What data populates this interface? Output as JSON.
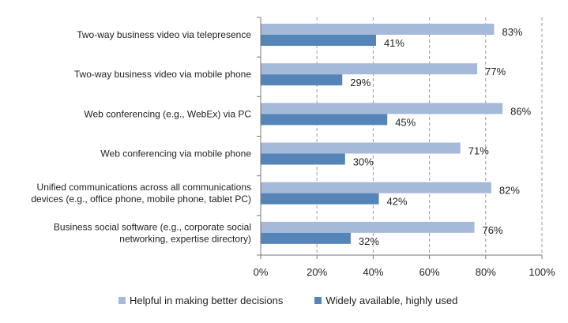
{
  "chart_data": {
    "type": "bar",
    "orientation": "horizontal",
    "categories": [
      [
        "Two-way business video via telepresence"
      ],
      [
        "Two-way business video via mobile phone"
      ],
      [
        "Web conferencing (e.g., WebEx) via PC"
      ],
      [
        "Web conferencing via mobile phone"
      ],
      [
        "Unified communications across all communications",
        "devices (e.g., office phone, mobile phone, tablet PC)"
      ],
      [
        "Business social software (e.g., corporate social",
        "networking, expertise directory)"
      ]
    ],
    "series": [
      {
        "name": "Helpful in making better decisions",
        "color": "#a5b9d9",
        "values": [
          83,
          77,
          86,
          71,
          82,
          76
        ],
        "labels": [
          "83%",
          "77%",
          "86%",
          "71%",
          "82%",
          "76%"
        ]
      },
      {
        "name": "Widely available, highly used",
        "color": "#5584b8",
        "values": [
          41,
          29,
          45,
          30,
          42,
          32
        ],
        "labels": [
          "41%",
          "29%",
          "45%",
          "30%",
          "42%",
          "32%"
        ]
      }
    ],
    "x_ticks": [
      "0%",
      "20%",
      "40%",
      "60%",
      "80%",
      "100%"
    ],
    "xlim": [
      0,
      100
    ],
    "grid": "vertical dashed",
    "legend_position": "bottom"
  }
}
